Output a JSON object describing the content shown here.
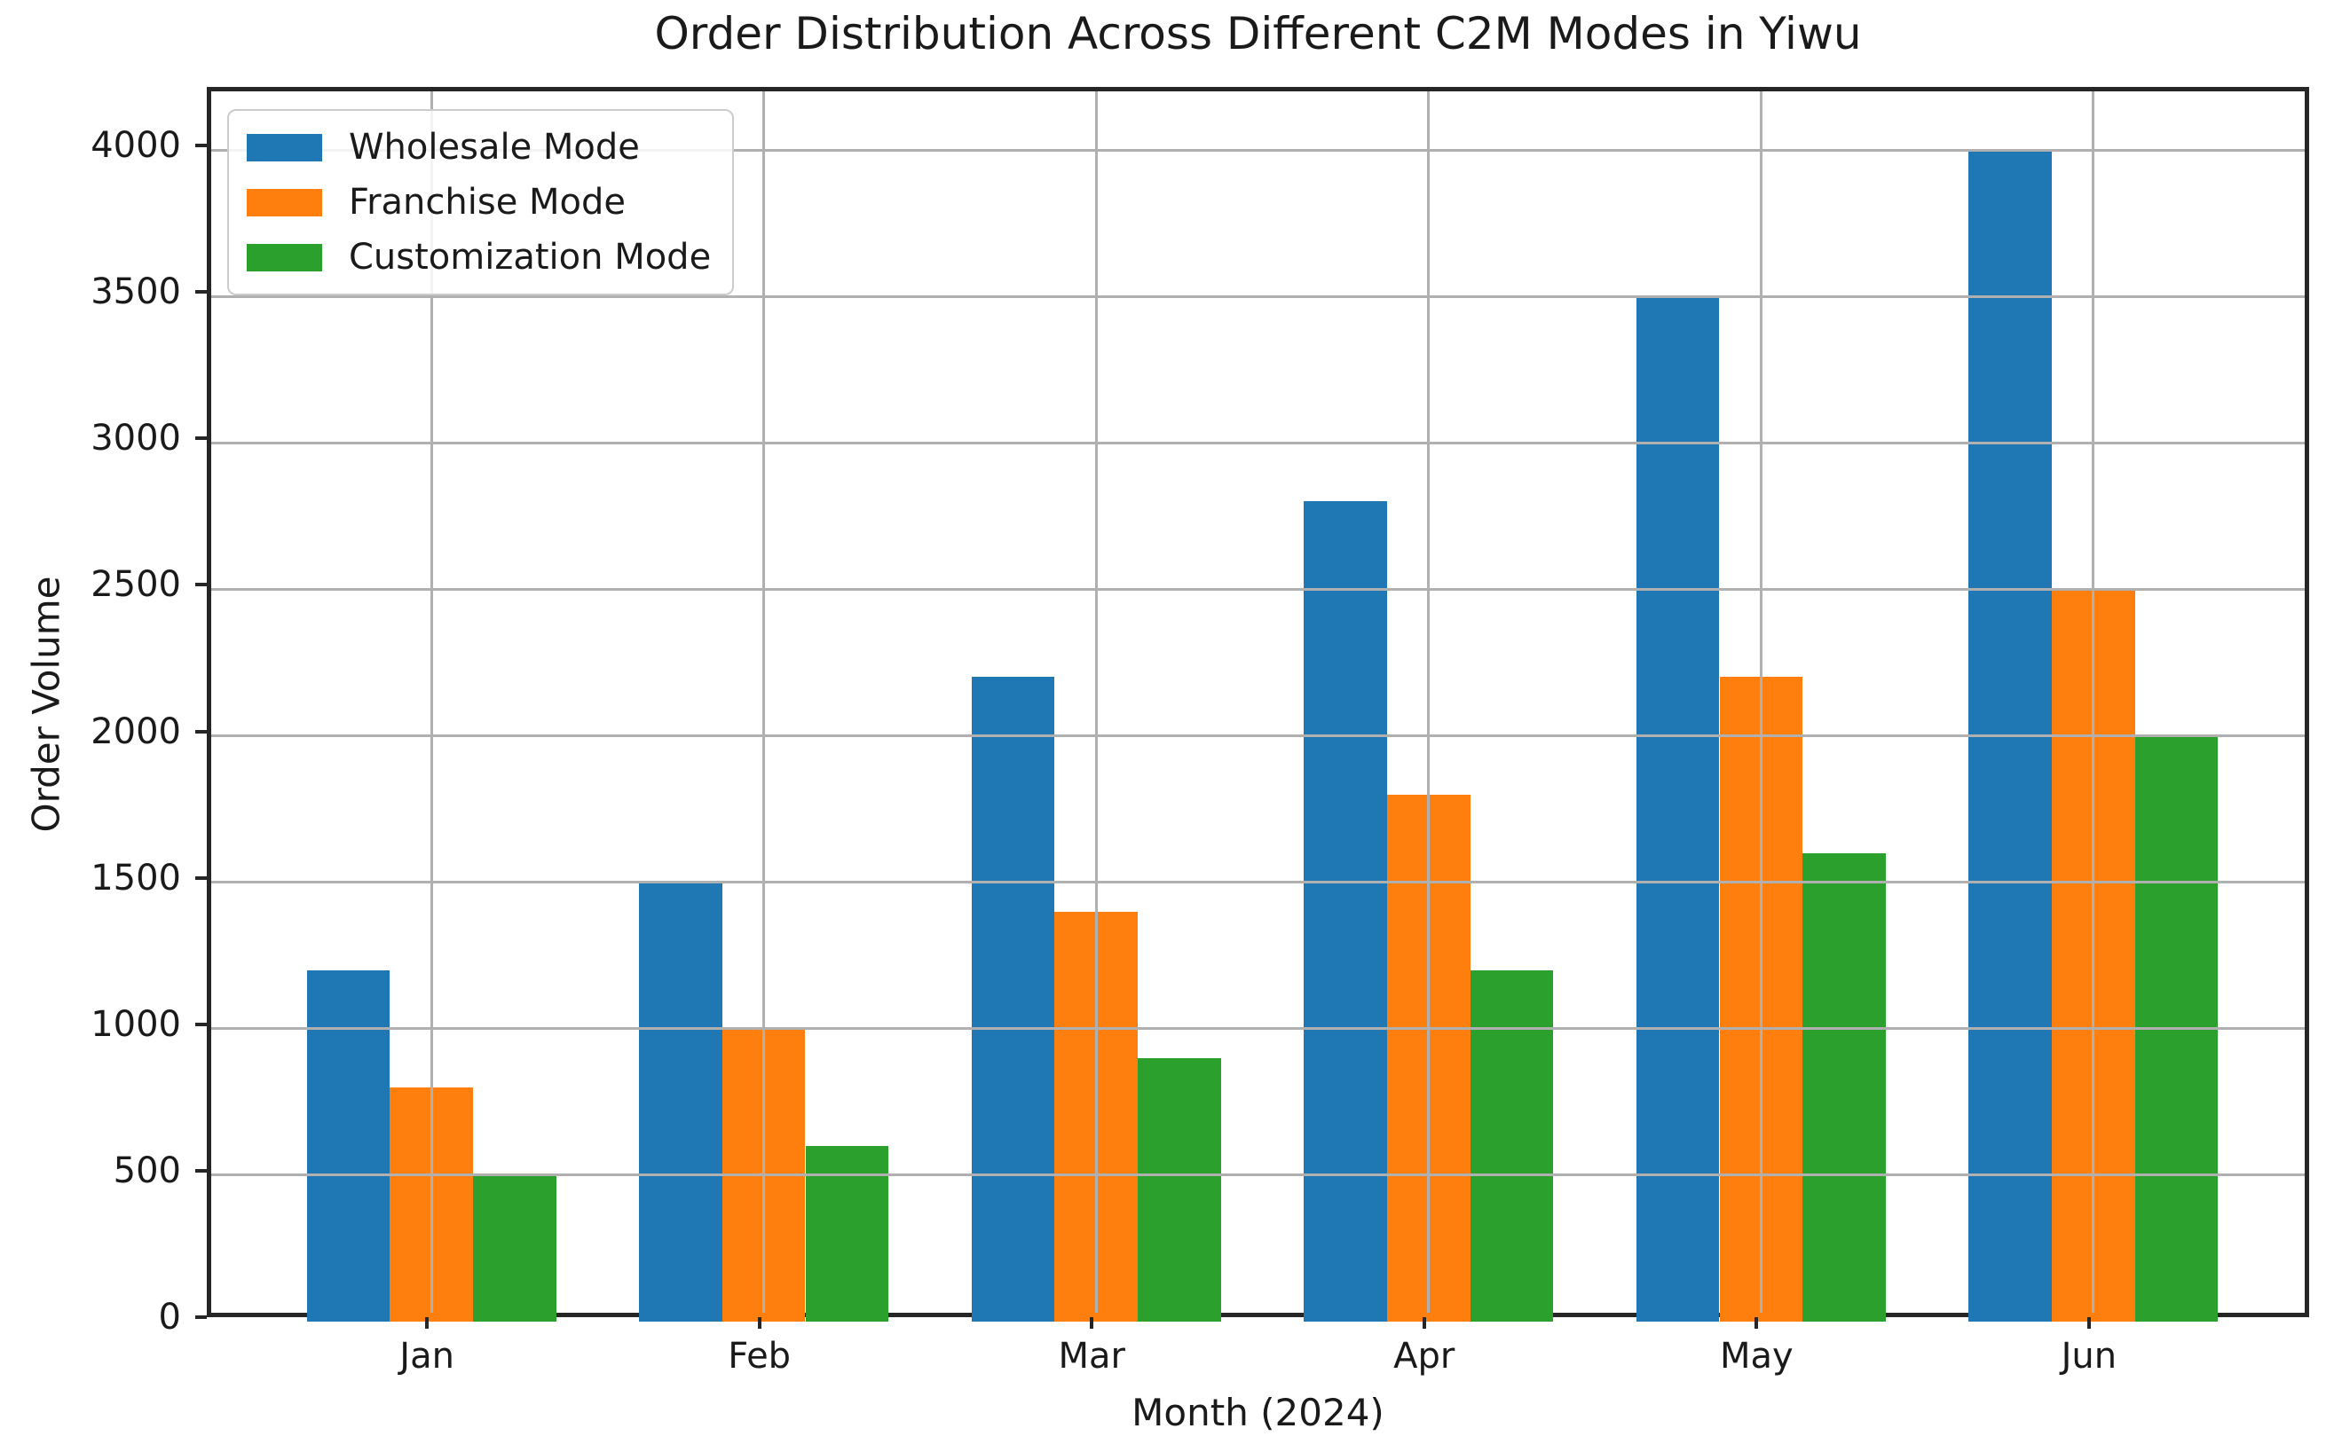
{
  "chart_data": {
    "type": "bar",
    "title": "Order Distribution Across Different C2M Modes in Yiwu",
    "xlabel": "Month (2024)",
    "ylabel": "Order Volume",
    "categories": [
      "Jan",
      "Feb",
      "Mar",
      "Apr",
      "May",
      "Jun"
    ],
    "series": [
      {
        "name": "Wholesale Mode",
        "color": "#1f77b4",
        "values": [
          1200,
          1500,
          2200,
          2800,
          3500,
          4000
        ]
      },
      {
        "name": "Franchise Mode",
        "color": "#ff7f0e",
        "values": [
          800,
          1000,
          1400,
          1800,
          2200,
          2500
        ]
      },
      {
        "name": "Customization Mode",
        "color": "#2ca02c",
        "values": [
          500,
          600,
          900,
          1200,
          1600,
          2000
        ]
      }
    ],
    "ylim": [
      0,
      4200
    ],
    "yticks": [
      0,
      500,
      1000,
      1500,
      2000,
      2500,
      3000,
      3500,
      4000
    ],
    "grid": true,
    "grid_color": "#b0b0b0",
    "axis_color": "#262626",
    "legend_position": "upper left",
    "bar_width": 0.25,
    "group_offsets": [
      -0.25,
      0,
      0.25
    ]
  }
}
